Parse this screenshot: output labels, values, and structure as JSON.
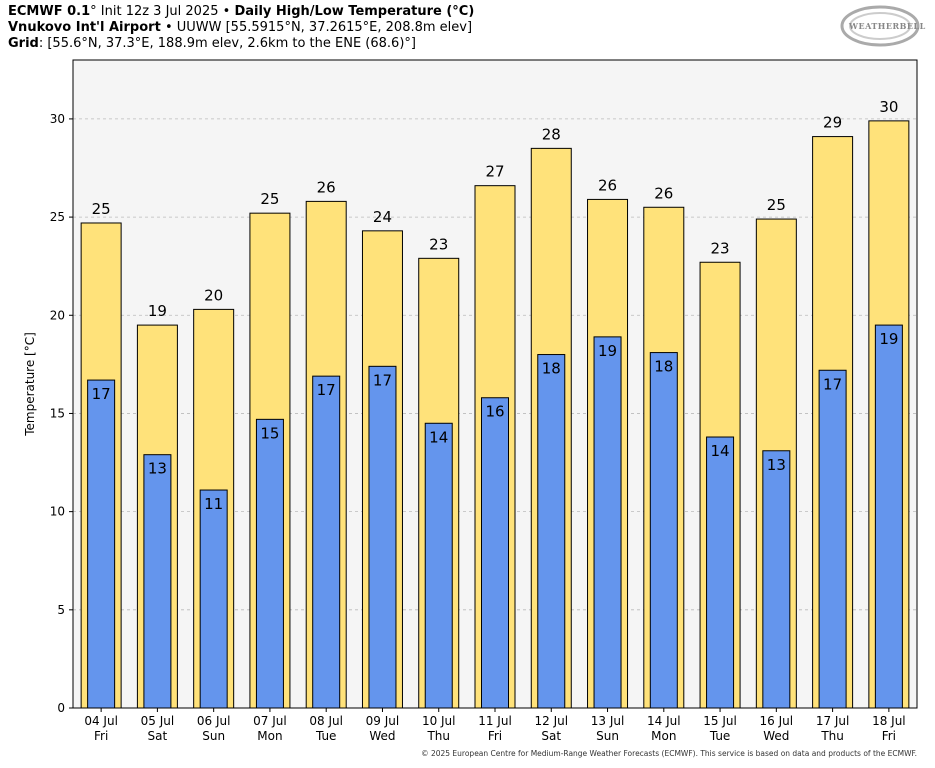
{
  "header": {
    "line1_model": "ECMWF 0.1",
    "line1_init": "° Init 12z 3 Jul 2025 •",
    "line1_title": "Daily High/Low Temperature (°C)",
    "line2_station": "Vnukovo Int'l Airport",
    "line2_rest": "• UUWW [55.5915°N, 37.2615°E, 208.8m elev]",
    "line3_label": "Grid",
    "line3_rest": ": [55.6°N, 37.3°E, 188.9m elev, 2.6km to the ENE (68.6)°]"
  },
  "logo": {
    "text": "WEATHERBELL"
  },
  "footer": "© 2025 European Centre for Medium-Range Weather Forecasts (ECMWF). This service is based on data and products of the ECMWF.",
  "chart_data": {
    "type": "bar",
    "ylabel": "Temperature [°C]",
    "ylim": [
      0,
      33
    ],
    "yticks": [
      0,
      5,
      10,
      15,
      20,
      25,
      30
    ],
    "grid": true,
    "categories": [
      "04 Jul",
      "05 Jul",
      "06 Jul",
      "07 Jul",
      "08 Jul",
      "09 Jul",
      "10 Jul",
      "11 Jul",
      "12 Jul",
      "13 Jul",
      "14 Jul",
      "15 Jul",
      "16 Jul",
      "17 Jul",
      "18 Jul"
    ],
    "weekdays": [
      "Fri",
      "Sat",
      "Sun",
      "Mon",
      "Tue",
      "Wed",
      "Thu",
      "Fri",
      "Sat",
      "Sun",
      "Mon",
      "Tue",
      "Wed",
      "Thu",
      "Fri"
    ],
    "series": [
      {
        "values": [
          24.7,
          19.5,
          20.3,
          25.2,
          25.8,
          24.3,
          22.9,
          26.6,
          28.5,
          25.9,
          25.5,
          22.7,
          24.9,
          29.1,
          29.9
        ],
        "labels": [
          "25",
          "19",
          "20",
          "25",
          "26",
          "24",
          "23",
          "27",
          "28",
          "26",
          "26",
          "23",
          "25",
          "29",
          "30"
        ],
        "color": "#ffe27a"
      },
      {
        "values": [
          16.7,
          12.9,
          11.1,
          14.7,
          16.9,
          17.4,
          14.5,
          15.8,
          18.0,
          18.9,
          18.1,
          13.8,
          13.1,
          17.2,
          19.5
        ],
        "labels": [
          "17",
          "13",
          "11",
          "15",
          "17",
          "17",
          "14",
          "16",
          "18",
          "19",
          "18",
          "14",
          "13",
          "17",
          "19"
        ],
        "color": "#6495ed"
      }
    ],
    "plot_background": "#f5f5f5"
  }
}
